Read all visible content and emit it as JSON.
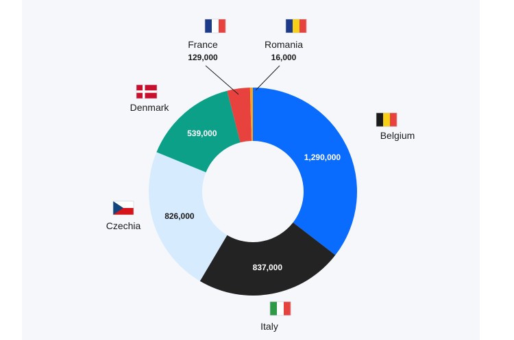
{
  "chart_data": {
    "type": "pie",
    "style": "donut",
    "title": "",
    "categories": [
      "Belgium",
      "Italy",
      "Czechia",
      "Denmark",
      "France",
      "Romania"
    ],
    "values": [
      1290000,
      837000,
      826000,
      539000,
      129000,
      16000
    ],
    "value_labels": [
      "1,290,000",
      "837,000",
      "826,000",
      "539,000",
      "129,000",
      "16,000"
    ],
    "colors": [
      "#0a6cff",
      "#232323",
      "#d7ebff",
      "#0ca088",
      "#e8423f",
      "#f5a623"
    ],
    "label_text_colors": [
      "#ffffff",
      "#ffffff",
      "#1a1a1a",
      "#ffffff",
      "",
      ""
    ],
    "value_inside_slice": [
      true,
      true,
      true,
      true,
      false,
      false
    ],
    "flags": [
      {
        "country": "Belgium",
        "kind": "vertical",
        "stripes": [
          "#1a1a1a",
          "#f7d117",
          "#e8423f"
        ]
      },
      {
        "country": "Italy",
        "kind": "vertical",
        "stripes": [
          "#2e9a47",
          "#ffffff",
          "#e8423f"
        ]
      },
      {
        "country": "Czechia",
        "kind": "czech",
        "stripes": [
          "#ffffff",
          "#d7141a",
          "#11457e"
        ]
      },
      {
        "country": "Denmark",
        "kind": "nordic",
        "stripes": [
          "#c8102e",
          "#ffffff"
        ]
      },
      {
        "country": "France",
        "kind": "vertical",
        "stripes": [
          "#1d3a8a",
          "#ffffff",
          "#e8423f"
        ]
      },
      {
        "country": "Romania",
        "kind": "vertical",
        "stripes": [
          "#1d3a8a",
          "#f7d117",
          "#e8423f"
        ]
      }
    ],
    "legend": "none",
    "grid": false
  }
}
